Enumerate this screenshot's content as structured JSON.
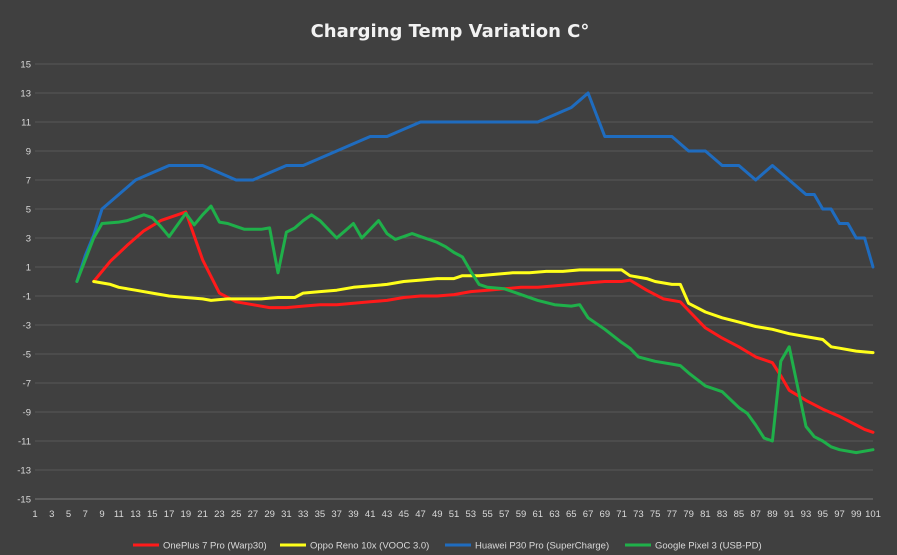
{
  "chart_data": {
    "type": "line",
    "title": "Charging Temp Variation C°",
    "xlabel": "",
    "ylabel": "",
    "xlim": [
      1,
      101
    ],
    "ylim": [
      -15,
      15
    ],
    "y_ticks": [
      15,
      13,
      11,
      9,
      7,
      5,
      3,
      1,
      -1,
      -3,
      -5,
      -7,
      -9,
      -11,
      -13,
      -15
    ],
    "x_ticks": [
      1,
      3,
      5,
      7,
      9,
      11,
      13,
      15,
      17,
      19,
      21,
      23,
      25,
      27,
      29,
      31,
      33,
      35,
      37,
      39,
      41,
      43,
      45,
      47,
      49,
      51,
      53,
      55,
      57,
      59,
      61,
      63,
      65,
      67,
      69,
      71,
      73,
      75,
      77,
      79,
      81,
      83,
      85,
      87,
      89,
      91,
      93,
      95,
      97,
      99,
      101
    ],
    "grid": true,
    "legend_position": "bottom",
    "series": [
      {
        "name": "OnePlus 7 Pro (Warp30)",
        "color": "#ff1a1a",
        "points": [
          [
            8,
            0
          ],
          [
            10,
            1.4
          ],
          [
            12,
            2.5
          ],
          [
            14,
            3.5
          ],
          [
            16,
            4.2
          ],
          [
            18,
            4.6
          ],
          [
            19,
            4.8
          ],
          [
            21,
            1.5
          ],
          [
            23,
            -0.8
          ],
          [
            25,
            -1.4
          ],
          [
            27,
            -1.6
          ],
          [
            29,
            -1.8
          ],
          [
            31,
            -1.8
          ],
          [
            33,
            -1.7
          ],
          [
            35,
            -1.6
          ],
          [
            37,
            -1.6
          ],
          [
            39,
            -1.5
          ],
          [
            41,
            -1.4
          ],
          [
            43,
            -1.3
          ],
          [
            45,
            -1.1
          ],
          [
            47,
            -1.0
          ],
          [
            49,
            -1.0
          ],
          [
            51,
            -0.9
          ],
          [
            53,
            -0.7
          ],
          [
            55,
            -0.6
          ],
          [
            57,
            -0.5
          ],
          [
            59,
            -0.4
          ],
          [
            61,
            -0.4
          ],
          [
            63,
            -0.3
          ],
          [
            65,
            -0.2
          ],
          [
            67,
            -0.1
          ],
          [
            69,
            0
          ],
          [
            71,
            0
          ],
          [
            72,
            0.1
          ],
          [
            74,
            -0.6
          ],
          [
            76,
            -1.2
          ],
          [
            78,
            -1.4
          ],
          [
            79,
            -2.0
          ],
          [
            81,
            -3.2
          ],
          [
            83,
            -3.9
          ],
          [
            85,
            -4.5
          ],
          [
            87,
            -5.2
          ],
          [
            89,
            -5.6
          ],
          [
            90,
            -6.5
          ],
          [
            91,
            -7.5
          ],
          [
            93,
            -8.2
          ],
          [
            95,
            -8.8
          ],
          [
            97,
            -9.3
          ],
          [
            98,
            -9.6
          ],
          [
            99,
            -9.9
          ],
          [
            100,
            -10.2
          ],
          [
            101,
            -10.4
          ]
        ]
      },
      {
        "name": "Oppo Reno 10x (VOOC 3.0)",
        "color": "#ffff1a",
        "points": [
          [
            8,
            0
          ],
          [
            10,
            -0.2
          ],
          [
            11,
            -0.4
          ],
          [
            13,
            -0.6
          ],
          [
            15,
            -0.8
          ],
          [
            17,
            -1.0
          ],
          [
            19,
            -1.1
          ],
          [
            21,
            -1.2
          ],
          [
            22,
            -1.3
          ],
          [
            24,
            -1.2
          ],
          [
            26,
            -1.2
          ],
          [
            28,
            -1.2
          ],
          [
            30,
            -1.1
          ],
          [
            32,
            -1.1
          ],
          [
            33,
            -0.8
          ],
          [
            35,
            -0.7
          ],
          [
            37,
            -0.6
          ],
          [
            39,
            -0.4
          ],
          [
            41,
            -0.3
          ],
          [
            43,
            -0.2
          ],
          [
            45,
            0
          ],
          [
            47,
            0.1
          ],
          [
            49,
            0.2
          ],
          [
            51,
            0.2
          ],
          [
            52,
            0.4
          ],
          [
            54,
            0.4
          ],
          [
            56,
            0.5
          ],
          [
            58,
            0.6
          ],
          [
            60,
            0.6
          ],
          [
            62,
            0.7
          ],
          [
            64,
            0.7
          ],
          [
            66,
            0.8
          ],
          [
            68,
            0.8
          ],
          [
            70,
            0.8
          ],
          [
            71,
            0.8
          ],
          [
            72,
            0.4
          ],
          [
            74,
            0.2
          ],
          [
            75,
            0
          ],
          [
            77,
            -0.2
          ],
          [
            78,
            -0.2
          ],
          [
            79,
            -1.5
          ],
          [
            81,
            -2.1
          ],
          [
            83,
            -2.5
          ],
          [
            85,
            -2.8
          ],
          [
            87,
            -3.1
          ],
          [
            89,
            -3.3
          ],
          [
            91,
            -3.6
          ],
          [
            93,
            -3.8
          ],
          [
            95,
            -4.0
          ],
          [
            96,
            -4.5
          ],
          [
            97,
            -4.6
          ],
          [
            99,
            -4.8
          ],
          [
            101,
            -4.9
          ]
        ]
      },
      {
        "name": "Huawei P30 Pro (SuperCharge)",
        "color": "#1f6cbf",
        "points": [
          [
            6,
            0
          ],
          [
            7,
            1.8
          ],
          [
            8,
            3.2
          ],
          [
            9,
            5
          ],
          [
            11,
            6
          ],
          [
            13,
            7
          ],
          [
            15,
            7.5
          ],
          [
            17,
            8
          ],
          [
            19,
            8
          ],
          [
            21,
            8
          ],
          [
            23,
            7.5
          ],
          [
            25,
            7
          ],
          [
            27,
            7
          ],
          [
            29,
            7.5
          ],
          [
            31,
            8
          ],
          [
            33,
            8
          ],
          [
            35,
            8.5
          ],
          [
            37,
            9
          ],
          [
            39,
            9.5
          ],
          [
            41,
            10
          ],
          [
            43,
            10
          ],
          [
            45,
            10.5
          ],
          [
            47,
            11
          ],
          [
            49,
            11
          ],
          [
            51,
            11
          ],
          [
            53,
            11
          ],
          [
            55,
            11
          ],
          [
            57,
            11
          ],
          [
            59,
            11
          ],
          [
            61,
            11
          ],
          [
            63,
            11.5
          ],
          [
            65,
            12
          ],
          [
            66,
            12.5
          ],
          [
            67,
            13
          ],
          [
            69,
            10
          ],
          [
            71,
            10
          ],
          [
            73,
            10
          ],
          [
            75,
            10
          ],
          [
            77,
            10
          ],
          [
            79,
            9
          ],
          [
            81,
            9
          ],
          [
            83,
            8
          ],
          [
            85,
            8
          ],
          [
            87,
            7
          ],
          [
            89,
            8
          ],
          [
            91,
            7
          ],
          [
            93,
            6
          ],
          [
            94,
            6
          ],
          [
            95,
            5
          ],
          [
            96,
            5
          ],
          [
            97,
            4
          ],
          [
            98,
            4
          ],
          [
            99,
            3
          ],
          [
            100,
            3
          ],
          [
            101,
            1
          ]
        ]
      },
      {
        "name": "Google Pixel 3 (USB-PD)",
        "color": "#1fb04a",
        "points": [
          [
            6,
            0
          ],
          [
            8,
            3
          ],
          [
            9,
            4
          ],
          [
            11,
            4.1
          ],
          [
            12,
            4.2
          ],
          [
            13,
            4.4
          ],
          [
            14,
            4.6
          ],
          [
            15,
            4.4
          ],
          [
            16,
            3.8
          ],
          [
            17,
            3.1
          ],
          [
            18,
            3.9
          ],
          [
            19,
            4.7
          ],
          [
            20,
            3.9
          ],
          [
            21,
            4.6
          ],
          [
            22,
            5.2
          ],
          [
            23,
            4.1
          ],
          [
            24,
            4.0
          ],
          [
            25,
            3.8
          ],
          [
            26,
            3.6
          ],
          [
            27,
            3.6
          ],
          [
            28,
            3.6
          ],
          [
            29,
            3.7
          ],
          [
            30,
            0.6
          ],
          [
            31,
            3.4
          ],
          [
            32,
            3.7
          ],
          [
            33,
            4.2
          ],
          [
            34,
            4.6
          ],
          [
            35,
            4.2
          ],
          [
            36,
            3.6
          ],
          [
            37,
            3.0
          ],
          [
            38,
            3.5
          ],
          [
            39,
            4.0
          ],
          [
            40,
            3.0
          ],
          [
            41,
            3.6
          ],
          [
            42,
            4.2
          ],
          [
            43,
            3.3
          ],
          [
            44,
            2.9
          ],
          [
            45,
            3.1
          ],
          [
            46,
            3.3
          ],
          [
            47,
            3.1
          ],
          [
            48,
            2.9
          ],
          [
            49,
            2.7
          ],
          [
            50,
            2.4
          ],
          [
            51,
            2.0
          ],
          [
            52,
            1.7
          ],
          [
            53,
            0.7
          ],
          [
            54,
            -0.2
          ],
          [
            55,
            -0.4
          ],
          [
            57,
            -0.5
          ],
          [
            59,
            -0.9
          ],
          [
            61,
            -1.3
          ],
          [
            63,
            -1.6
          ],
          [
            65,
            -1.7
          ],
          [
            66,
            -1.6
          ],
          [
            67,
            -2.5
          ],
          [
            69,
            -3.3
          ],
          [
            71,
            -4.2
          ],
          [
            72,
            -4.6
          ],
          [
            73,
            -5.2
          ],
          [
            75,
            -5.5
          ],
          [
            77,
            -5.7
          ],
          [
            78,
            -5.8
          ],
          [
            79,
            -6.3
          ],
          [
            81,
            -7.2
          ],
          [
            83,
            -7.6
          ],
          [
            85,
            -8.7
          ],
          [
            86,
            -9.1
          ],
          [
            87,
            -9.9
          ],
          [
            88,
            -10.8
          ],
          [
            89,
            -11.0
          ],
          [
            90,
            -5.5
          ],
          [
            91,
            -4.5
          ],
          [
            93,
            -10.0
          ],
          [
            94,
            -10.7
          ],
          [
            95,
            -11.0
          ],
          [
            96,
            -11.4
          ],
          [
            97,
            -11.6
          ],
          [
            99,
            -11.8
          ],
          [
            101,
            -11.6
          ]
        ]
      }
    ]
  }
}
